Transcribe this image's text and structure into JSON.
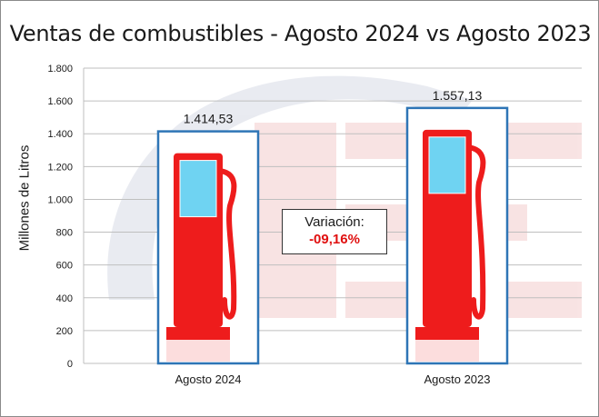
{
  "chart_data": {
    "type": "bar",
    "title": "Ventas de combustibles - Agosto 2024 vs Agosto 2023",
    "xlabel": "",
    "ylabel": "Millones de Litros",
    "categories": [
      "Agosto 2024",
      "Agosto 2023"
    ],
    "values": [
      1414.53,
      1557.13
    ],
    "data_labels": [
      "1.414,53",
      "1.557,13"
    ],
    "ylim": [
      0,
      1800
    ],
    "yticks": [
      0,
      200,
      400,
      600,
      800,
      1000,
      1200,
      1400,
      1600,
      1800
    ],
    "ytick_labels": [
      "0",
      "200",
      "400",
      "600",
      "800",
      "1.000",
      "1.200",
      "1.400",
      "1.600",
      "1.800"
    ],
    "grid": true,
    "legend": "none",
    "bar_style": "fuel-pump-icon",
    "colors": {
      "bar_border": "#2e75b6",
      "pump": "#ee1c1c",
      "pump_window": "#6fd3f2",
      "variation": "#e01010"
    },
    "annotation": {
      "label": "Variación:",
      "value": "-09,16%"
    }
  }
}
